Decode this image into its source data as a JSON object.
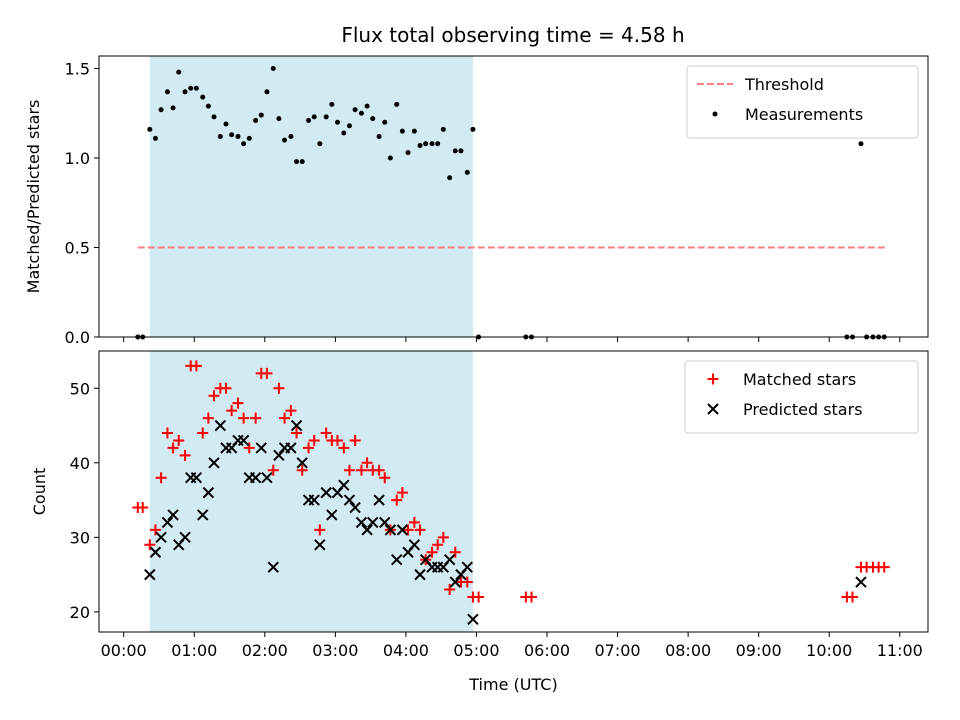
{
  "chart_data": [
    {
      "type": "scatter",
      "title": "Flux total observing time = 4.58 h",
      "xlabel": "",
      "ylabel": "Matched/Predicted stars",
      "xlim": [
        -0.35,
        11.4
      ],
      "ylim": [
        0.0,
        1.57
      ],
      "yticks": [
        0.0,
        0.5,
        1.0,
        1.5
      ],
      "ytick_labels": [
        "0.0",
        "0.5",
        "1.0",
        "1.5"
      ],
      "shaded_span": [
        0.37,
        4.95
      ],
      "shade_color": "#add8e6",
      "legend_position": "upper right",
      "threshold": {
        "name": "Threshold",
        "value": 0.5,
        "x_range": [
          0.2,
          10.8
        ],
        "color": "#ff7f7f",
        "style": "dashed"
      },
      "series": [
        {
          "name": "Measurements",
          "marker": "dot",
          "color": "#000000",
          "x": [
            0.2,
            0.27,
            0.37,
            0.45,
            0.53,
            0.62,
            0.7,
            0.78,
            0.87,
            0.95,
            1.03,
            1.12,
            1.2,
            1.28,
            1.37,
            1.45,
            1.53,
            1.62,
            1.7,
            1.78,
            1.87,
            1.95,
            2.03,
            2.12,
            2.2,
            2.28,
            2.37,
            2.45,
            2.53,
            2.62,
            2.7,
            2.78,
            2.87,
            2.95,
            3.03,
            3.12,
            3.2,
            3.28,
            3.37,
            3.45,
            3.53,
            3.62,
            3.7,
            3.78,
            3.87,
            3.95,
            4.03,
            4.12,
            4.2,
            4.28,
            4.37,
            4.45,
            4.53,
            4.62,
            4.7,
            4.78,
            4.87,
            4.95,
            5.03,
            5.7,
            5.78,
            10.25,
            10.33,
            10.45,
            10.53,
            10.62,
            10.7,
            10.78
          ],
          "y": [
            0.0,
            0.0,
            1.16,
            1.11,
            1.27,
            1.37,
            1.28,
            1.48,
            1.37,
            1.39,
            1.39,
            1.34,
            1.29,
            1.23,
            1.12,
            1.19,
            1.13,
            1.12,
            1.08,
            1.11,
            1.21,
            1.24,
            1.37,
            1.5,
            1.22,
            1.1,
            1.12,
            0.98,
            0.98,
            1.21,
            1.23,
            1.08,
            1.23,
            1.3,
            1.2,
            1.14,
            1.18,
            1.27,
            1.25,
            1.29,
            1.22,
            1.12,
            1.2,
            1.0,
            1.3,
            1.15,
            1.03,
            1.15,
            1.07,
            1.08,
            1.08,
            1.08,
            1.16,
            0.89,
            1.04,
            1.04,
            0.92,
            1.16,
            0.0,
            0.0,
            0.0,
            0.0,
            0.0,
            1.08,
            0.0,
            0.0,
            0.0,
            0.0
          ]
        }
      ]
    },
    {
      "type": "scatter",
      "title": "",
      "xlabel": "Time (UTC)",
      "ylabel": "Count",
      "xlim": [
        -0.35,
        11.4
      ],
      "ylim": [
        17.3,
        55.0
      ],
      "yticks": [
        20,
        30,
        40,
        50
      ],
      "ytick_labels": [
        "20",
        "30",
        "40",
        "50"
      ],
      "xticks": [
        0,
        1,
        2,
        3,
        4,
        5,
        6,
        7,
        8,
        9,
        10,
        11
      ],
      "xtick_labels": [
        "00:00",
        "01:00",
        "02:00",
        "03:00",
        "04:00",
        "05:00",
        "06:00",
        "07:00",
        "08:00",
        "09:00",
        "10:00",
        "11:00"
      ],
      "shaded_span": [
        0.37,
        4.95
      ],
      "shade_color": "#add8e6",
      "legend_position": "upper right",
      "series": [
        {
          "name": "Matched stars",
          "marker": "plus",
          "color": "#ff0000",
          "x": [
            0.2,
            0.27,
            0.37,
            0.45,
            0.53,
            0.62,
            0.7,
            0.78,
            0.87,
            0.95,
            1.03,
            1.12,
            1.2,
            1.28,
            1.37,
            1.45,
            1.53,
            1.62,
            1.7,
            1.78,
            1.87,
            1.95,
            2.03,
            2.12,
            2.2,
            2.28,
            2.37,
            2.45,
            2.53,
            2.62,
            2.7,
            2.78,
            2.87,
            2.95,
            3.03,
            3.12,
            3.2,
            3.28,
            3.37,
            3.45,
            3.53,
            3.62,
            3.7,
            3.78,
            3.87,
            3.95,
            4.03,
            4.12,
            4.2,
            4.28,
            4.37,
            4.45,
            4.53,
            4.62,
            4.7,
            4.78,
            4.87,
            4.95,
            5.03,
            5.7,
            5.78,
            10.25,
            10.33,
            10.45,
            10.53,
            10.62,
            10.7,
            10.78
          ],
          "y": [
            34,
            34,
            29,
            31,
            38,
            44,
            42,
            43,
            41,
            53,
            53,
            44,
            46,
            49,
            50,
            50,
            47,
            48,
            46,
            42,
            46,
            52,
            52,
            39,
            50,
            46,
            47,
            44,
            39,
            42,
            43,
            31,
            44,
            43,
            43,
            42,
            39,
            43,
            39,
            40,
            39,
            39,
            38,
            31,
            35,
            36,
            31,
            32,
            31,
            27,
            28,
            29,
            30,
            23,
            28,
            24,
            24,
            22,
            22,
            22,
            22,
            22,
            22,
            26,
            26,
            26,
            26,
            26
          ]
        },
        {
          "name": "Predicted stars",
          "marker": "x",
          "color": "#000000",
          "x": [
            0.37,
            0.45,
            0.53,
            0.62,
            0.7,
            0.78,
            0.87,
            0.95,
            1.03,
            1.12,
            1.2,
            1.28,
            1.37,
            1.45,
            1.53,
            1.62,
            1.7,
            1.78,
            1.87,
            1.95,
            2.03,
            2.12,
            2.2,
            2.28,
            2.37,
            2.45,
            2.53,
            2.62,
            2.7,
            2.78,
            2.87,
            2.95,
            3.03,
            3.12,
            3.2,
            3.28,
            3.37,
            3.45,
            3.53,
            3.62,
            3.7,
            3.78,
            3.87,
            3.95,
            4.03,
            4.12,
            4.2,
            4.28,
            4.37,
            4.45,
            4.53,
            4.62,
            4.7,
            4.78,
            4.87,
            4.95,
            10.45
          ],
          "y": [
            25,
            28,
            30,
            32,
            33,
            29,
            30,
            38,
            38,
            33,
            36,
            40,
            45,
            42,
            42,
            43,
            43,
            38,
            38,
            42,
            38,
            26,
            41,
            42,
            42,
            45,
            40,
            35,
            35,
            29,
            36,
            33,
            36,
            37,
            35,
            34,
            32,
            31,
            32,
            35,
            32,
            31,
            27,
            31,
            28,
            29,
            25,
            27,
            26,
            26,
            26,
            27,
            24,
            25,
            26,
            19,
            24
          ]
        }
      ]
    }
  ]
}
